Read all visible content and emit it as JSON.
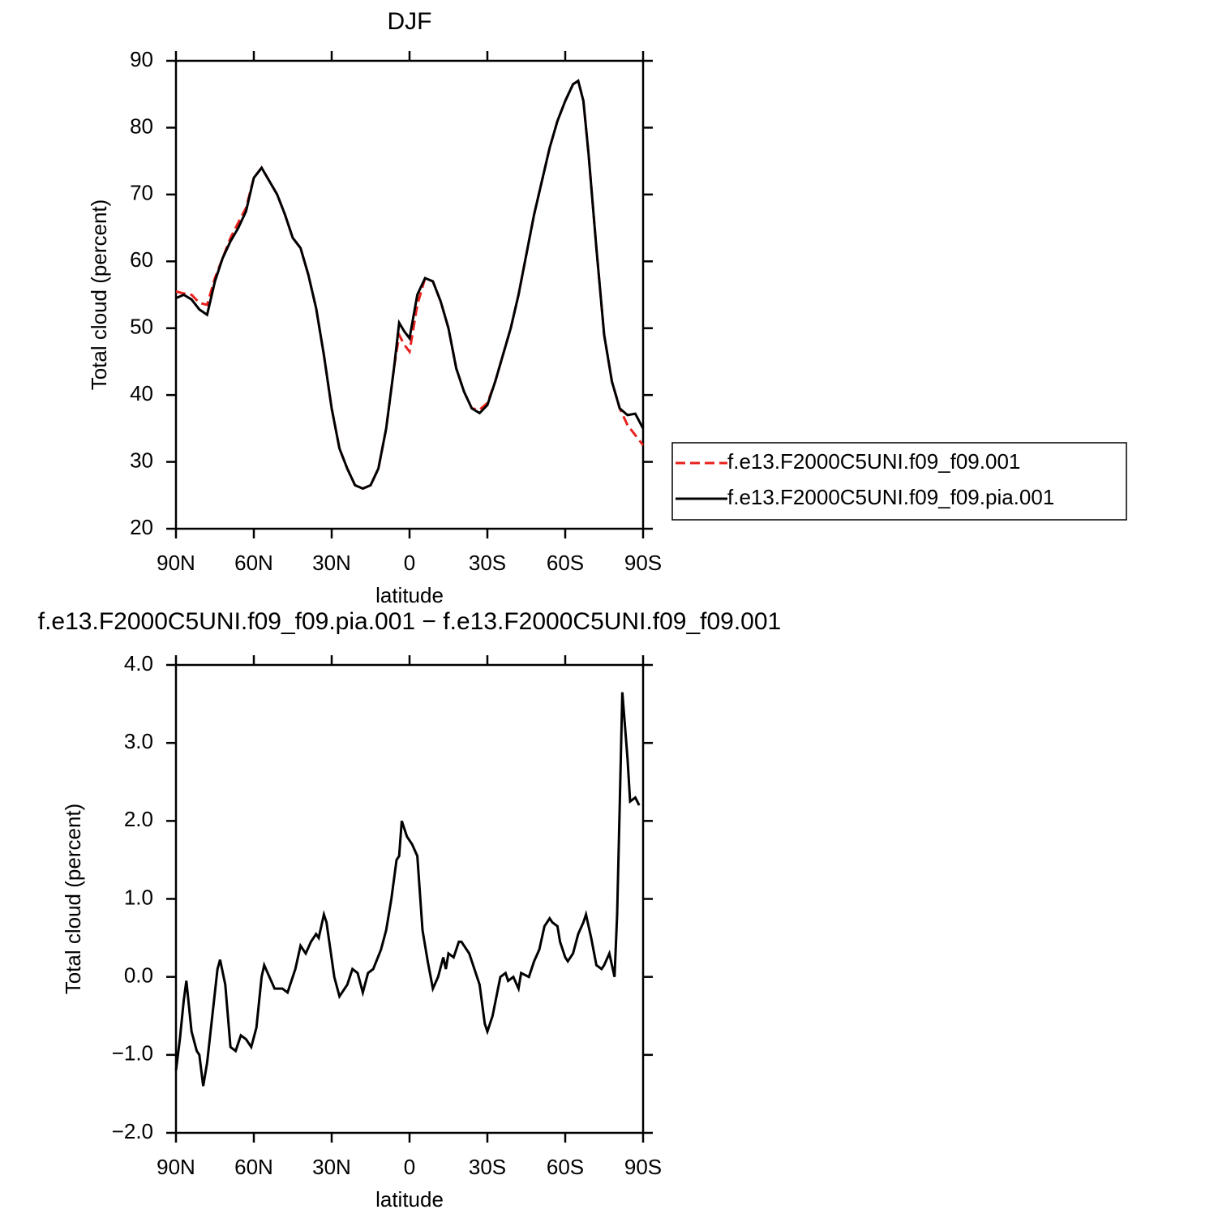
{
  "chart_data": [
    {
      "type": "line",
      "title": "DJF",
      "x_label": "latitude",
      "y_label": "Total cloud (percent)",
      "x": [
        90,
        87,
        84,
        81,
        78,
        75,
        72,
        69,
        66,
        63,
        60,
        57,
        54,
        51,
        48,
        45,
        42,
        39,
        36,
        33,
        30,
        27,
        24,
        21,
        18,
        15,
        12,
        9,
        6,
        4,
        2,
        0,
        -3,
        -6,
        -9,
        -12,
        -15,
        -18,
        -21,
        -24,
        -27,
        -30,
        -33,
        -36,
        -39,
        -42,
        -45,
        -48,
        -51,
        -54,
        -57,
        -60,
        -63,
        -65,
        -67,
        -69,
        -72,
        -75,
        -78,
        -81,
        -84,
        -87,
        -90
      ],
      "xlim": [
        90,
        -90
      ],
      "xticks": [
        {
          "value": 90,
          "label": "90N"
        },
        {
          "value": 60,
          "label": "60N"
        },
        {
          "value": 30,
          "label": "30N"
        },
        0,
        {
          "value": -30,
          "label": "30S"
        },
        {
          "value": -60,
          "label": "60S"
        },
        {
          "value": -90,
          "label": "90S"
        }
      ],
      "ylim": [
        20,
        90
      ],
      "yticks": [
        20,
        30,
        40,
        50,
        60,
        70,
        80,
        90
      ],
      "legend": "right",
      "series": [
        {
          "name": "f.e13.F2000C5UNI.f09_f09.001",
          "color": "#e8211d",
          "linestyle": "dashed",
          "values": [
            55.5,
            55.2,
            55,
            53.8,
            53.5,
            57.5,
            60.5,
            63.5,
            65.8,
            68,
            72.5,
            74,
            72,
            70,
            67,
            63.5,
            62,
            58,
            53,
            46,
            38,
            32,
            29,
            26.5,
            26,
            26.5,
            29,
            35,
            44,
            49,
            47.5,
            46.5,
            53.5,
            57.5,
            57,
            54,
            50,
            44,
            40.5,
            38,
            37.8,
            38.8,
            42,
            46,
            50,
            55,
            61,
            67,
            72,
            77,
            81,
            84,
            86.5,
            87,
            84,
            76,
            62,
            49,
            42,
            38,
            35.5,
            34,
            32.5
          ]
        },
        {
          "name": "f.e13.F2000C5UNI.f09_f09.pia.001",
          "color": "#000000",
          "linestyle": "solid",
          "values": [
            54.5,
            55,
            54.3,
            52.8,
            52,
            57,
            60.5,
            63,
            65,
            67.5,
            72.5,
            74,
            72,
            70,
            67,
            63.5,
            62,
            58,
            53,
            46,
            38,
            32,
            29,
            26.5,
            26,
            26.5,
            29,
            35,
            44,
            50.8,
            49.5,
            48.5,
            55,
            57.5,
            57,
            54,
            50,
            44,
            40.5,
            38,
            37.3,
            38.5,
            42,
            46,
            50,
            55,
            61,
            67,
            72,
            77,
            81,
            84,
            86.5,
            87,
            84,
            76,
            62,
            49,
            42,
            38,
            37,
            37.2,
            35
          ]
        }
      ]
    },
    {
      "type": "line",
      "title": "f.e13.F2000C5UNI.f09_f09.pia.001 − f.e13.F2000C5UNI.f09_f09.001",
      "x_label": "latitude",
      "y_label": "Total cloud (percent)",
      "x": [
        90,
        88.5,
        87,
        86,
        84,
        82,
        81,
        79.5,
        78,
        76,
        74,
        73,
        71,
        69,
        67,
        65,
        63,
        61,
        59,
        57,
        56,
        54,
        52,
        49,
        47,
        44,
        42,
        40,
        38,
        36,
        35,
        33,
        32,
        29,
        27,
        24,
        22,
        20,
        18,
        16,
        14,
        11,
        9,
        7,
        5,
        4,
        3,
        1,
        -1,
        -3,
        -5,
        -7,
        -9,
        -11,
        -13,
        -14,
        -15,
        -17,
        -19,
        -20,
        -23,
        -25,
        -27,
        -29,
        -30,
        -32,
        -35,
        -37,
        -38,
        -40,
        -42,
        -43,
        -46,
        -48,
        -50,
        -52,
        -54,
        -55,
        -57,
        -58,
        -60,
        -61,
        -63,
        -65,
        -67,
        -68,
        -70,
        -72,
        -74,
        -75,
        -77,
        -79,
        -80,
        -81,
        -82,
        -84,
        -85,
        -87,
        -88.5
      ],
      "xlim": [
        90,
        -90
      ],
      "xticks": [
        {
          "value": 90,
          "label": "90N"
        },
        {
          "value": 60,
          "label": "60N"
        },
        {
          "value": 30,
          "label": "30N"
        },
        0,
        {
          "value": -30,
          "label": "30S"
        },
        {
          "value": -60,
          "label": "60S"
        },
        {
          "value": -90,
          "label": "90S"
        }
      ],
      "ylim": [
        -2,
        4
      ],
      "yticks": [
        {
          "value": -2,
          "label": "−2.0"
        },
        {
          "value": -1,
          "label": "−1.0"
        },
        {
          "value": 0,
          "label": "0.0"
        },
        {
          "value": 1,
          "label": "1.0"
        },
        {
          "value": 2,
          "label": "2.0"
        },
        {
          "value": 3,
          "label": "3.0"
        },
        {
          "value": 4,
          "label": "4.0"
        }
      ],
      "series": [
        {
          "color": "#000000",
          "linestyle": "solid",
          "values": [
            -1.2,
            -0.8,
            -0.3,
            -0.05,
            -0.7,
            -0.95,
            -1.0,
            -1.4,
            -1.1,
            -0.5,
            0.1,
            0.22,
            -0.1,
            -0.9,
            -0.95,
            -0.75,
            -0.8,
            -0.9,
            -0.65,
            0.0,
            0.15,
            0.0,
            -0.15,
            -0.15,
            -0.2,
            0.1,
            0.4,
            0.3,
            0.45,
            0.55,
            0.5,
            0.8,
            0.7,
            0.0,
            -0.25,
            -0.1,
            0.1,
            0.05,
            -0.2,
            0.05,
            0.1,
            0.35,
            0.6,
            1.0,
            1.5,
            1.55,
            2.0,
            1.8,
            1.7,
            1.55,
            0.6,
            0.2,
            -0.15,
            0.0,
            0.25,
            0.1,
            0.3,
            0.25,
            0.45,
            0.45,
            0.3,
            0.1,
            -0.1,
            -0.6,
            -0.7,
            -0.5,
            0.0,
            0.05,
            -0.05,
            0.0,
            -0.15,
            0.05,
            0.0,
            0.2,
            0.35,
            0.65,
            0.75,
            0.7,
            0.65,
            0.45,
            0.25,
            0.2,
            0.3,
            0.55,
            0.7,
            0.8,
            0.5,
            0.15,
            0.1,
            0.15,
            0.3,
            0.0,
            0.8,
            2.2,
            3.65,
            2.8,
            2.25,
            2.3,
            2.2
          ]
        }
      ]
    }
  ]
}
